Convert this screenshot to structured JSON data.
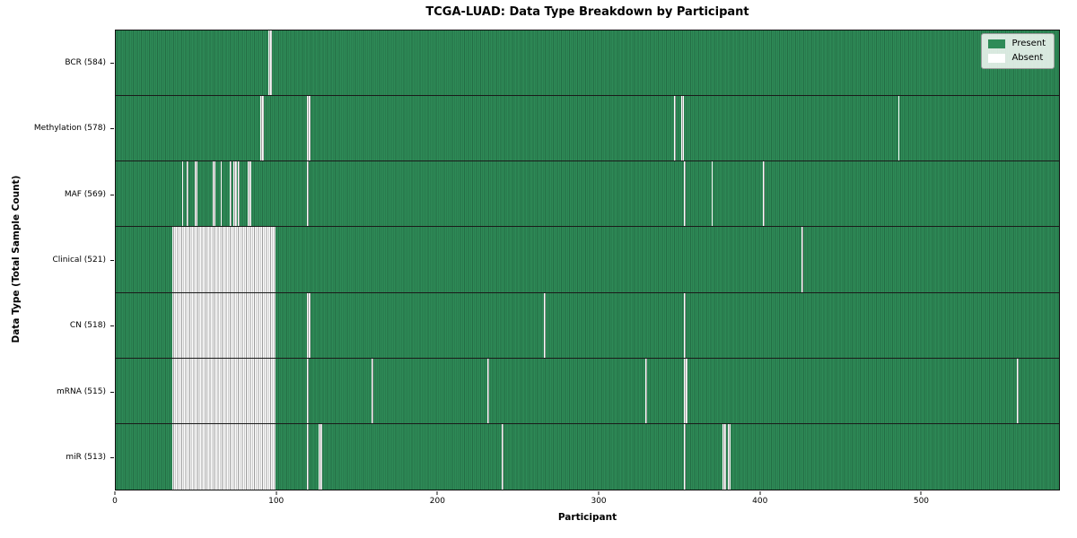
{
  "chart_data": {
    "type": "heatmap",
    "title": "TCGA-LUAD: Data Type Breakdown by Participant",
    "xlabel": "Participant",
    "ylabel": "Data Type (Total Sample Count)",
    "x_ticks": [
      0,
      100,
      200,
      300,
      400,
      500
    ],
    "x_range": [
      0,
      586
    ],
    "n_participants": 586,
    "grid": false,
    "legend": {
      "position": "upper-right",
      "entries": [
        {
          "label": "Present",
          "color": "#2e8b57"
        },
        {
          "label": "Absent",
          "color": "#ffffff"
        }
      ]
    },
    "colors": {
      "present": "#2e8b57",
      "present_edge": "#246e45",
      "absent": "#fdfdfd",
      "absent_edge": "#9c9c9c"
    },
    "rows": [
      {
        "label": "BCR (584)",
        "data_type": "BCR",
        "count": 584,
        "absent_ranges": [
          [
            95,
            97
          ]
        ]
      },
      {
        "label": "Methylation (578)",
        "data_type": "Methylation",
        "count": 578,
        "absent_ranges": [
          [
            90,
            92
          ],
          [
            119,
            121
          ],
          [
            347,
            348
          ],
          [
            351,
            353
          ],
          [
            486,
            487
          ]
        ]
      },
      {
        "label": "MAF (569)",
        "data_type": "MAF",
        "count": 569,
        "absent_ranges": [
          [
            41,
            42
          ],
          [
            44,
            45
          ],
          [
            49,
            51
          ],
          [
            60,
            62
          ],
          [
            65,
            66
          ],
          [
            71,
            72
          ],
          [
            73,
            75
          ],
          [
            76,
            77
          ],
          [
            82,
            84
          ],
          [
            119,
            120
          ],
          [
            353,
            354
          ],
          [
            370,
            371
          ],
          [
            402,
            403
          ]
        ]
      },
      {
        "label": "Clinical (521)",
        "data_type": "Clinical",
        "count": 521,
        "absent_ranges": [
          [
            35,
            99
          ],
          [
            426,
            427
          ]
        ]
      },
      {
        "label": "CN (518)",
        "data_type": "CN",
        "count": 518,
        "absent_ranges": [
          [
            35,
            99
          ],
          [
            119,
            121
          ],
          [
            266,
            267
          ],
          [
            353,
            354
          ]
        ]
      },
      {
        "label": "mRNA (515)",
        "data_type": "mRNA",
        "count": 515,
        "absent_ranges": [
          [
            35,
            99
          ],
          [
            119,
            120
          ],
          [
            159,
            160
          ],
          [
            231,
            232
          ],
          [
            329,
            330
          ],
          [
            353,
            355
          ],
          [
            560,
            561
          ]
        ]
      },
      {
        "label": "miR (513)",
        "data_type": "miR",
        "count": 513,
        "absent_ranges": [
          [
            35,
            99
          ],
          [
            119,
            120
          ],
          [
            126,
            128
          ],
          [
            240,
            241
          ],
          [
            353,
            354
          ],
          [
            377,
            379
          ],
          [
            380,
            382
          ]
        ]
      }
    ]
  }
}
